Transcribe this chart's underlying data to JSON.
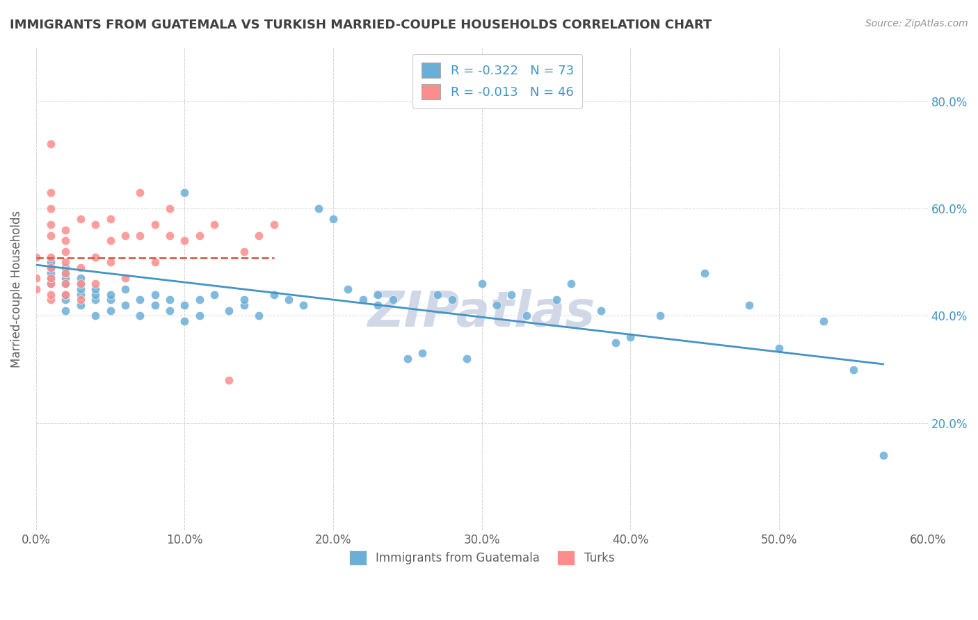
{
  "title": "IMMIGRANTS FROM GUATEMALA VS TURKISH MARRIED-COUPLE HOUSEHOLDS CORRELATION CHART",
  "source": "Source: ZipAtlas.com",
  "xlabel": "",
  "ylabel": "Married-couple Households",
  "xlim": [
    0.0,
    0.6
  ],
  "ylim": [
    0.0,
    0.9
  ],
  "xtick_labels": [
    "0.0%",
    "10.0%",
    "20.0%",
    "30.0%",
    "40.0%",
    "50.0%",
    "60.0%"
  ],
  "xtick_values": [
    0.0,
    0.1,
    0.2,
    0.3,
    0.4,
    0.5,
    0.6
  ],
  "ytick_labels": [
    "20.0%",
    "40.0%",
    "60.0%",
    "80.0%"
  ],
  "ytick_values": [
    0.2,
    0.4,
    0.6,
    0.8
  ],
  "legend_blue_label": "R = -0.322   N = 73",
  "legend_pink_label": "R = -0.013   N = 46",
  "blue_color": "#6baed6",
  "pink_color": "#fc8d8d",
  "blue_line_color": "#4393c3",
  "pink_line_color": "#d6604d",
  "watermark": "ZIPatlas",
  "blue_scatter_x": [
    0.01,
    0.01,
    0.01,
    0.01,
    0.01,
    0.02,
    0.02,
    0.02,
    0.02,
    0.02,
    0.02,
    0.02,
    0.03,
    0.03,
    0.03,
    0.03,
    0.03,
    0.04,
    0.04,
    0.04,
    0.04,
    0.05,
    0.05,
    0.05,
    0.06,
    0.06,
    0.07,
    0.07,
    0.08,
    0.08,
    0.09,
    0.09,
    0.1,
    0.1,
    0.1,
    0.11,
    0.11,
    0.12,
    0.13,
    0.14,
    0.14,
    0.15,
    0.16,
    0.17,
    0.18,
    0.19,
    0.2,
    0.21,
    0.22,
    0.23,
    0.23,
    0.24,
    0.25,
    0.26,
    0.27,
    0.28,
    0.29,
    0.3,
    0.31,
    0.32,
    0.33,
    0.35,
    0.36,
    0.38,
    0.39,
    0.4,
    0.42,
    0.45,
    0.48,
    0.5,
    0.53,
    0.55,
    0.57
  ],
  "blue_scatter_y": [
    0.46,
    0.47,
    0.48,
    0.49,
    0.5,
    0.41,
    0.43,
    0.44,
    0.46,
    0.47,
    0.48,
    0.49,
    0.42,
    0.44,
    0.45,
    0.46,
    0.47,
    0.4,
    0.43,
    0.44,
    0.45,
    0.41,
    0.43,
    0.44,
    0.42,
    0.45,
    0.4,
    0.43,
    0.42,
    0.44,
    0.41,
    0.43,
    0.39,
    0.42,
    0.63,
    0.4,
    0.43,
    0.44,
    0.41,
    0.42,
    0.43,
    0.4,
    0.44,
    0.43,
    0.42,
    0.6,
    0.58,
    0.45,
    0.43,
    0.42,
    0.44,
    0.43,
    0.32,
    0.33,
    0.44,
    0.43,
    0.32,
    0.46,
    0.42,
    0.44,
    0.4,
    0.43,
    0.46,
    0.41,
    0.35,
    0.36,
    0.4,
    0.48,
    0.42,
    0.34,
    0.39,
    0.3,
    0.14
  ],
  "pink_scatter_x": [
    0.0,
    0.0,
    0.0,
    0.01,
    0.01,
    0.01,
    0.01,
    0.01,
    0.01,
    0.01,
    0.01,
    0.01,
    0.01,
    0.01,
    0.02,
    0.02,
    0.02,
    0.02,
    0.02,
    0.02,
    0.02,
    0.03,
    0.03,
    0.03,
    0.03,
    0.04,
    0.04,
    0.04,
    0.05,
    0.05,
    0.05,
    0.06,
    0.06,
    0.07,
    0.07,
    0.08,
    0.08,
    0.09,
    0.09,
    0.1,
    0.11,
    0.12,
    0.13,
    0.14,
    0.15,
    0.16
  ],
  "pink_scatter_y": [
    0.45,
    0.47,
    0.51,
    0.43,
    0.44,
    0.46,
    0.47,
    0.49,
    0.51,
    0.55,
    0.57,
    0.6,
    0.63,
    0.72,
    0.44,
    0.46,
    0.48,
    0.5,
    0.52,
    0.54,
    0.56,
    0.43,
    0.46,
    0.49,
    0.58,
    0.46,
    0.51,
    0.57,
    0.5,
    0.54,
    0.58,
    0.47,
    0.55,
    0.55,
    0.63,
    0.5,
    0.57,
    0.55,
    0.6,
    0.54,
    0.55,
    0.57,
    0.28,
    0.52,
    0.55,
    0.57
  ],
  "blue_trendline_x": [
    0.0,
    0.57
  ],
  "blue_trendline_y": [
    0.495,
    0.31
  ],
  "pink_trendline_x": [
    0.0,
    0.16
  ],
  "pink_trendline_y": [
    0.508,
    0.508
  ],
  "bottom_legend_blue": "Immigrants from Guatemala",
  "bottom_legend_pink": "Turks",
  "title_color": "#404040",
  "axis_color": "#808080",
  "grid_color": "#c0c0c0",
  "watermark_color": "#d0d8e8",
  "right_ytick_color": "#4393c3"
}
